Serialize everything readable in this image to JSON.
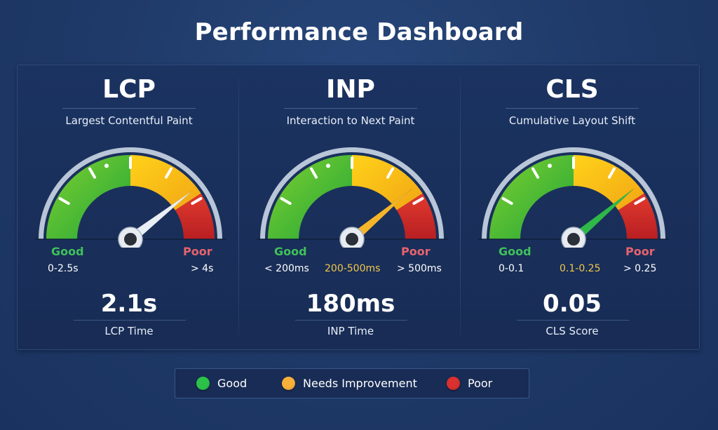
{
  "title": "Performance Dashboard",
  "colors": {
    "good": "#2fb84a",
    "needs_improvement": "#f5b52a",
    "poor": "#d42a2a",
    "background": "#1f3a68",
    "panel": "#1a2f5a"
  },
  "metrics": [
    {
      "abbr": "LCP",
      "name": "Largest Contentful Paint",
      "good_label": "Good",
      "poor_label": "Poor",
      "good_range": "0-2.5s",
      "mid_range": "",
      "poor_range": "> 4s",
      "value": "2.1s",
      "caption": "LCP Time",
      "needle_color": "#e9eef5",
      "needle_angle_deg": 38
    },
    {
      "abbr": "INP",
      "name": "Interaction to Next Paint",
      "good_label": "Good",
      "poor_label": "Poor",
      "good_range": "< 200ms",
      "mid_range": "200-500ms",
      "poor_range": "> 500ms",
      "value": "180ms",
      "caption": "INP Time",
      "needle_color": "#f5b52a",
      "needle_angle_deg": 40
    },
    {
      "abbr": "CLS",
      "name": "Cumulative Layout Shift",
      "good_label": "Good",
      "poor_label": "Poor",
      "good_range": "0-0.1",
      "mid_range": "0.1-0.25",
      "poor_range": "> 0.25",
      "value": "0.05",
      "caption": "CLS Score",
      "needle_color": "#2fb84a",
      "needle_angle_deg": 40
    }
  ],
  "legend": [
    {
      "label": "Good",
      "color": "#2cc24a"
    },
    {
      "label": "Needs Improvement",
      "color": "#f7b03a"
    },
    {
      "label": "Poor",
      "color": "#d93030"
    }
  ]
}
